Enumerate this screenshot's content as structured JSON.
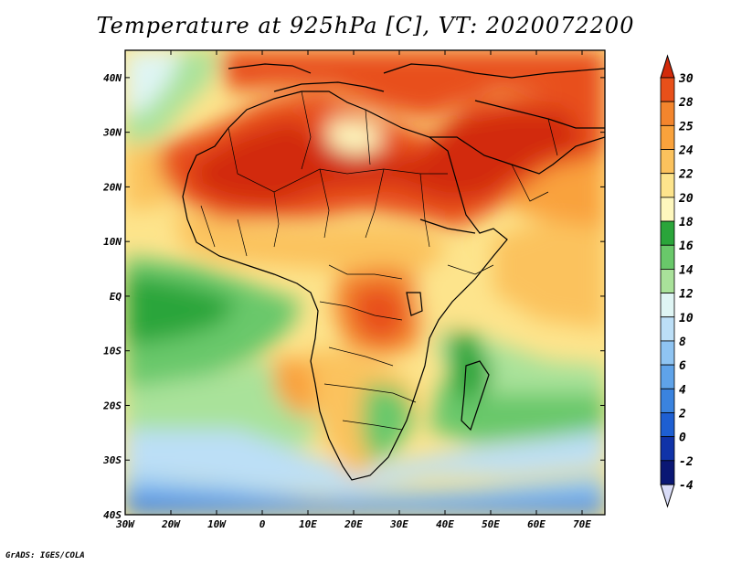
{
  "title": "Temperature at 925hPa [C], VT: 2020072200",
  "credit": "GrADS: IGES/COLA",
  "map": {
    "projection": "lat-lon",
    "lon_range": [
      -30,
      75
    ],
    "lat_range": [
      -40,
      45
    ],
    "variable": "temperature_925hPa",
    "units": "C",
    "valid_time": "2020072200",
    "lon_ticks": [
      "30W",
      "20W",
      "10W",
      "0",
      "10E",
      "20E",
      "30E",
      "40E",
      "50E",
      "60E",
      "70E"
    ],
    "lat_ticks": [
      "40N",
      "30N",
      "20N",
      "10N",
      "EQ",
      "10S",
      "20S",
      "30S",
      "40S"
    ]
  },
  "colorbar": {
    "levels": [
      "30",
      "28",
      "25",
      "24",
      "22",
      "20",
      "18",
      "16",
      "14",
      "12",
      "10",
      "8",
      "6",
      "4",
      "2",
      "0",
      "-2",
      "-4"
    ],
    "colors": [
      "#d22a0a",
      "#e8501a",
      "#f3852d",
      "#f9a23c",
      "#fbc25d",
      "#fde48c",
      "#fef7bd",
      "#2aa53a",
      "#69c86a",
      "#a9e29a",
      "#dff5f4",
      "#bcdff7",
      "#8fc4f2",
      "#5fa3e9",
      "#3a83df",
      "#1e5fd2",
      "#1033a8",
      "#0a1774",
      "#d9dcf7"
    ]
  }
}
